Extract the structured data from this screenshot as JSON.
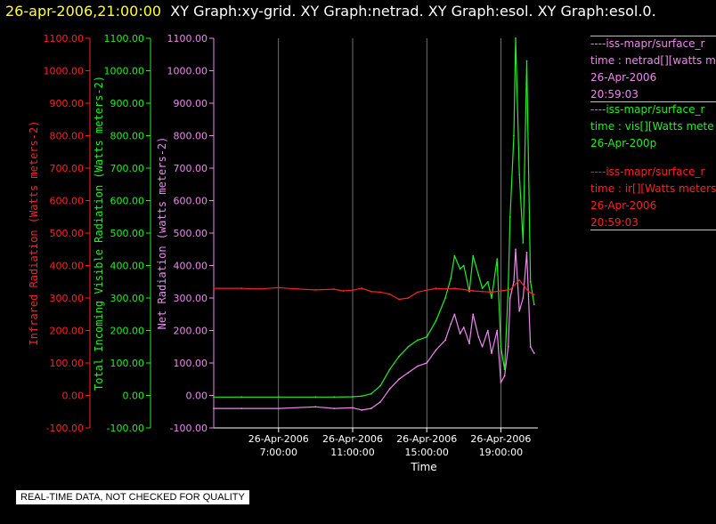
{
  "header": {
    "timestamp": "26-apr-2006,21:00:00",
    "graphs": "XY Graph:xy-grid.  XY Graph:netrad.  XY Graph:esol.  XY Graph:esol.0."
  },
  "colors": {
    "infrared": "#ff2020",
    "visible": "#22ee22",
    "net": "#ee88ee",
    "grid": "#bbbbbb",
    "axis_text": "#ffffff"
  },
  "legend": [
    {
      "color": "#ee88ee",
      "lines": [
        "----iss-mapr/surface_r",
        "time : netrad[][watts m",
        "26-Apr-2006",
        "20:59:03"
      ]
    },
    {
      "color": "#22ee22",
      "lines": [
        "----iss-mapr/surface_r",
        "time : vis[][Watts mete",
        "26-Apr-200p"
      ]
    },
    {
      "color": "#ff2020",
      "lines": [
        "----iss-mapr/surface_r",
        "time : ir[][Watts meters",
        "26-Apr-2006",
        "20:59:03"
      ]
    }
  ],
  "banner": "REAL-TIME DATA, NOT CHECKED FOR QUALITY",
  "chart_data": {
    "type": "line",
    "xlabel": "Time",
    "x_ticks": [
      {
        "t": 7,
        "date": "26-Apr-2006",
        "time": "7:00:00"
      },
      {
        "t": 11,
        "date": "26-Apr-2006",
        "time": "11:00:00"
      },
      {
        "t": 15,
        "date": "26-Apr-2006",
        "time": "15:00:00"
      },
      {
        "t": 19,
        "date": "26-Apr-2006",
        "time": "19:00:00"
      }
    ],
    "xlim": [
      "26-Apr-2006 3:30",
      "26-Apr-2006 21:00"
    ],
    "ylim": [
      -100,
      1100
    ],
    "y_ticks": [
      "-100.00",
      "0.00",
      "100.00",
      "200.00",
      "300.00",
      "400.00",
      "500.00",
      "600.00",
      "700.00",
      "800.00",
      "900.00",
      "1000.00",
      "1100.00"
    ],
    "y_tick_values": [
      -100,
      0,
      100,
      200,
      300,
      400,
      500,
      600,
      700,
      800,
      900,
      1000,
      1100
    ],
    "axes": [
      {
        "label": "Infrared Radiation (Watts meters-2)",
        "color": "#ff2020"
      },
      {
        "label": "Total Incoming Visible Radiation (Watts meters-2)",
        "color": "#22ee22"
      },
      {
        "label": "Net Radiation (watts meters-2)",
        "color": "#ee88ee"
      }
    ],
    "grid": true,
    "series": [
      {
        "key": "infrared",
        "x": [
          3.5,
          5,
          6,
          7,
          8,
          9,
          10,
          10.5,
          11,
          11.5,
          12,
          12.5,
          13,
          13.5,
          14,
          14.5,
          15,
          15.5,
          16,
          16.5,
          17,
          17.5,
          18,
          18.5,
          19,
          19.5,
          20,
          20.5,
          20.8
        ],
        "y": [
          330,
          330,
          328,
          332,
          328,
          325,
          327,
          322,
          324,
          330,
          320,
          318,
          312,
          296,
          300,
          318,
          324,
          330,
          328,
          330,
          326,
          322,
          320,
          318,
          322,
          326,
          355,
          320,
          310
        ]
      },
      {
        "key": "visible",
        "x": [
          3.5,
          5,
          7,
          9,
          10,
          11,
          11.5,
          12,
          12.5,
          13,
          13.5,
          14,
          14.5,
          15,
          15.5,
          16,
          16.3,
          16.5,
          16.8,
          17,
          17.3,
          17.5,
          17.8,
          18,
          18.3,
          18.5,
          18.8,
          19,
          19.2,
          19.4,
          19.5,
          19.7,
          19.8,
          20,
          20.2,
          20.4,
          20.6,
          20.8
        ],
        "y": [
          -5,
          -5,
          -5,
          -5,
          -5,
          -4,
          -2,
          5,
          30,
          80,
          120,
          150,
          170,
          180,
          230,
          300,
          360,
          430,
          390,
          400,
          320,
          430,
          370,
          330,
          350,
          300,
          420,
          150,
          80,
          330,
          550,
          800,
          1100,
          680,
          470,
          1030,
          350,
          280
        ]
      },
      {
        "key": "net",
        "x": [
          3.5,
          5,
          7,
          9,
          10,
          11,
          11.5,
          12,
          12.5,
          13,
          13.5,
          14,
          14.5,
          15,
          15.5,
          16,
          16.3,
          16.5,
          16.8,
          17,
          17.3,
          17.5,
          17.8,
          18,
          18.3,
          18.5,
          18.8,
          19,
          19.2,
          19.4,
          19.5,
          19.7,
          19.8,
          20,
          20.2,
          20.4,
          20.6,
          20.8
        ],
        "y": [
          -40,
          -40,
          -40,
          -35,
          -40,
          -38,
          -45,
          -40,
          -20,
          20,
          50,
          70,
          90,
          100,
          140,
          170,
          220,
          250,
          190,
          210,
          160,
          250,
          180,
          150,
          200,
          130,
          200,
          40,
          60,
          150,
          300,
          350,
          450,
          260,
          300,
          440,
          150,
          130
        ]
      }
    ]
  }
}
